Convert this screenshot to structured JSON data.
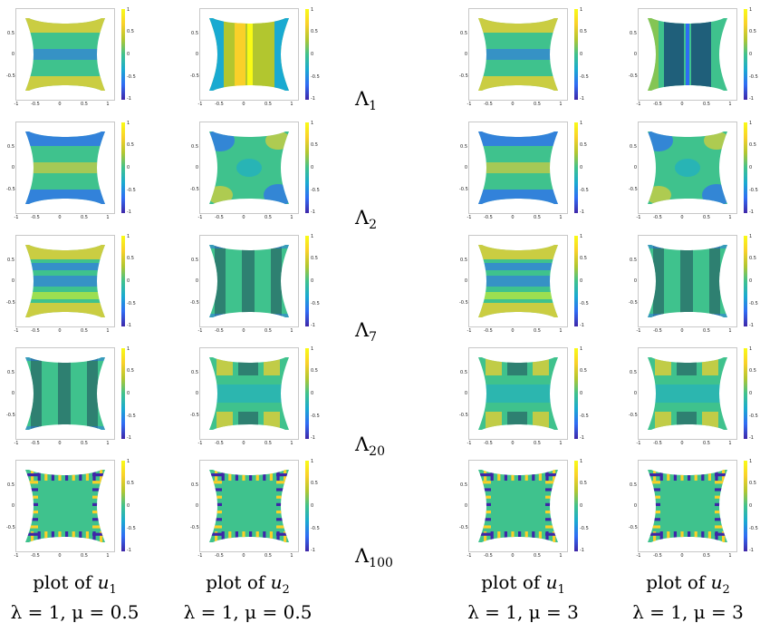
{
  "colormap": [
    "#3e26a8",
    "#2f6cf4",
    "#19aad1",
    "#3fc28d",
    "#b2c62f",
    "#f9d029",
    "#f9fb15"
  ],
  "axes": {
    "x_ticks": [
      "-1",
      "-0.5",
      "0",
      "0.5",
      "1"
    ],
    "y_ticks": [
      "0.5",
      "0",
      "-0.5"
    ],
    "cbar_ticks": [
      "1",
      "0.5",
      "0",
      "-0.5",
      "-1"
    ]
  },
  "row_labels": [
    {
      "base": "Λ",
      "sub": "1"
    },
    {
      "base": "Λ",
      "sub": "2"
    },
    {
      "base": "Λ",
      "sub": "7"
    },
    {
      "base": "Λ",
      "sub": "20"
    },
    {
      "base": "Λ",
      "sub": "100"
    }
  ],
  "columns": [
    {
      "caption_plot": "plot of ",
      "caption_var": "u",
      "caption_sub": "1",
      "caption_params": "λ = 1,  μ = 0.5"
    },
    {
      "caption_plot": "plot of ",
      "caption_var": "u",
      "caption_sub": "2",
      "caption_params": "λ = 1,  μ = 0.5"
    },
    {
      "caption_plot": "plot of ",
      "caption_var": "u",
      "caption_sub": "1",
      "caption_params": "λ = 1,  μ = 3"
    },
    {
      "caption_plot": "plot of ",
      "caption_var": "u",
      "caption_sub": "2",
      "caption_params": "λ = 1,  μ = 3"
    }
  ]
}
